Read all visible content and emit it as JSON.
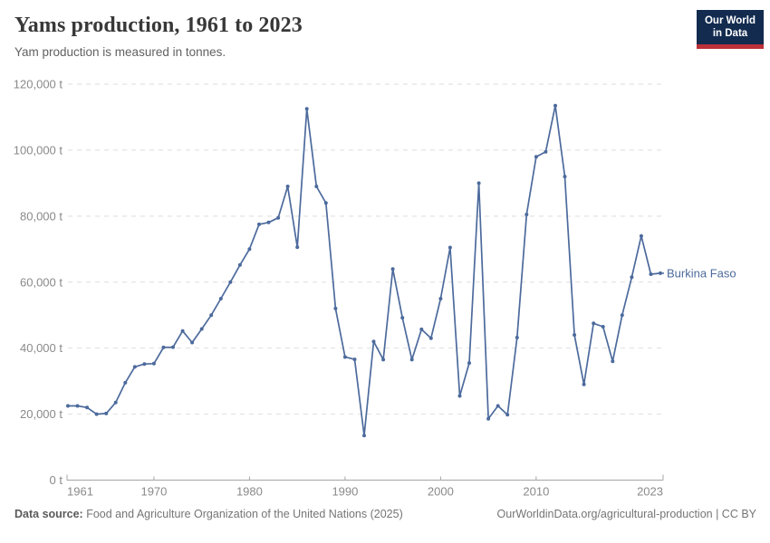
{
  "header": {
    "title": "Yams production, 1961 to 2023",
    "subtitle": "Yam production is measured in tonnes.",
    "logo": {
      "line1": "Our World",
      "line2": "in Data"
    }
  },
  "chart_data": {
    "type": "line",
    "title": "Yams production, 1961 to 2023",
    "unit": "t",
    "xlim": [
      1961,
      2023
    ],
    "ylim": [
      0,
      120000
    ],
    "grid": "horizontal-dashed",
    "legend_position": "end-of-line-label",
    "x_ticks": [
      1961,
      1970,
      1980,
      1990,
      2000,
      2010,
      2023
    ],
    "y_ticks": [
      0,
      20000,
      40000,
      60000,
      80000,
      100000,
      120000
    ],
    "y_tick_labels": [
      "0 t",
      "20,000 t",
      "40,000 t",
      "60,000 t",
      "80,000 t",
      "100,000 t",
      "120,000 t"
    ],
    "series": [
      {
        "name": "Burkina Faso",
        "color": "#4c6a9c",
        "x": [
          1961,
          1962,
          1963,
          1964,
          1965,
          1966,
          1967,
          1968,
          1969,
          1970,
          1971,
          1972,
          1973,
          1974,
          1975,
          1976,
          1977,
          1978,
          1979,
          1980,
          1981,
          1982,
          1983,
          1984,
          1985,
          1986,
          1987,
          1988,
          1989,
          1990,
          1991,
          1992,
          1993,
          1994,
          1995,
          1996,
          1997,
          1998,
          1999,
          2000,
          2001,
          2002,
          2003,
          2004,
          2005,
          2006,
          2007,
          2008,
          2009,
          2010,
          2011,
          2012,
          2013,
          2014,
          2015,
          2016,
          2017,
          2018,
          2019,
          2020,
          2021,
          2022,
          2023
        ],
        "values": [
          22500,
          22500,
          22000,
          20000,
          20200,
          23500,
          29500,
          34300,
          35200,
          35300,
          40200,
          40300,
          45200,
          41700,
          45800,
          50000,
          55000,
          60000,
          65200,
          70000,
          77500,
          78100,
          79500,
          89000,
          70600,
          112500,
          89000,
          84000,
          52000,
          37300,
          36600,
          13500,
          42000,
          36500,
          64000,
          49200,
          36500,
          45700,
          43000,
          55000,
          70500,
          25500,
          35500,
          90000,
          18600,
          22500,
          19800,
          43200,
          80500,
          98000,
          99500,
          113500,
          92000,
          44000,
          29000,
          47500,
          46500,
          36000,
          50000,
          61500,
          74000,
          62400,
          62700
        ]
      }
    ]
  },
  "footer": {
    "source_label": "Data source:",
    "source_text": "Food and Agriculture Organization of the United Nations (2025)",
    "link_text": "OurWorldinData.org/agricultural-production | CC BY"
  }
}
